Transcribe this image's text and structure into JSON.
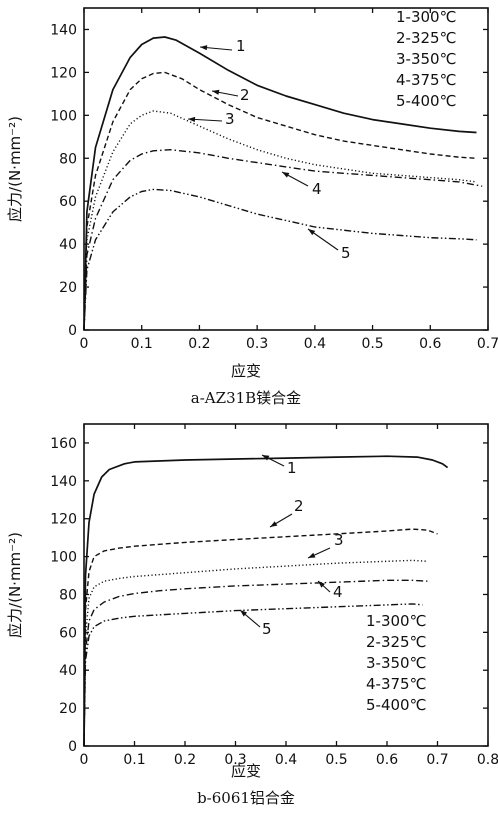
{
  "chart_data": [
    {
      "type": "line",
      "caption": "a-AZ31B镁合金",
      "xlabel": "应变",
      "ylabel": "应力/(N·mm⁻²)",
      "xlim": [
        0,
        0.7
      ],
      "ylim": [
        0,
        150
      ],
      "xticks": [
        "0",
        "0.1",
        "0.2",
        "0.3",
        "0.4",
        "0.5",
        "0.6",
        "0.7"
      ],
      "yticks": [
        "0",
        "20",
        "40",
        "60",
        "80",
        "100",
        "120",
        "140"
      ],
      "legend_position": "top-right",
      "legend": [
        "1-300℃",
        "2-325℃",
        "3-350℃",
        "4-375℃",
        "5-400℃"
      ],
      "series": [
        {
          "name": "1",
          "style": "solid",
          "x": [
            0,
            0.005,
            0.02,
            0.05,
            0.08,
            0.1,
            0.12,
            0.14,
            0.16,
            0.2,
            0.25,
            0.3,
            0.35,
            0.4,
            0.45,
            0.5,
            0.55,
            0.6,
            0.65,
            0.68
          ],
          "y": [
            0,
            55,
            85,
            112,
            127,
            133,
            136,
            136.5,
            135,
            129,
            121,
            114,
            109,
            105,
            101,
            98,
            96,
            94,
            92.5,
            92
          ]
        },
        {
          "name": "2",
          "style": "dashed",
          "x": [
            0,
            0.005,
            0.02,
            0.05,
            0.08,
            0.1,
            0.12,
            0.14,
            0.17,
            0.2,
            0.25,
            0.3,
            0.35,
            0.4,
            0.45,
            0.5,
            0.55,
            0.6,
            0.65,
            0.68
          ],
          "y": [
            0,
            48,
            72,
            97,
            112,
            117,
            119.5,
            120,
            117,
            112,
            105,
            99,
            95,
            91,
            88,
            86,
            84,
            82,
            80.5,
            80
          ]
        },
        {
          "name": "3",
          "style": "dotted",
          "x": [
            0,
            0.005,
            0.02,
            0.05,
            0.08,
            0.1,
            0.12,
            0.15,
            0.2,
            0.25,
            0.3,
            0.35,
            0.4,
            0.45,
            0.5,
            0.55,
            0.6,
            0.65,
            0.68
          ],
          "y": [
            0,
            42,
            62,
            83,
            96,
            100,
            102,
            101,
            95,
            89,
            84,
            80,
            77,
            75,
            73,
            72,
            71,
            70,
            69
          ]
        },
        {
          "name": "4",
          "style": "dash-dot",
          "x": [
            0,
            0.005,
            0.02,
            0.05,
            0.08,
            0.1,
            0.12,
            0.15,
            0.2,
            0.25,
            0.3,
            0.35,
            0.4,
            0.45,
            0.5,
            0.55,
            0.6,
            0.65,
            0.69
          ],
          "y": [
            0,
            35,
            52,
            70,
            79,
            82,
            83.5,
            84,
            82.5,
            80,
            78,
            76,
            74,
            73,
            72,
            71,
            70,
            69,
            67
          ]
        },
        {
          "name": "5",
          "style": "dash-dot-dot",
          "x": [
            0,
            0.005,
            0.02,
            0.05,
            0.08,
            0.1,
            0.12,
            0.15,
            0.2,
            0.25,
            0.3,
            0.35,
            0.4,
            0.45,
            0.5,
            0.55,
            0.6,
            0.65,
            0.68
          ],
          "y": [
            0,
            28,
            42,
            55,
            62,
            64.5,
            65.5,
            65,
            62,
            58,
            54,
            51,
            48,
            46.5,
            45,
            44,
            43,
            42.5,
            42
          ]
        }
      ]
    },
    {
      "type": "line",
      "caption": "b-6061铝合金",
      "xlabel": "应变",
      "ylabel": "应力/(N·mm⁻²)",
      "xlim": [
        0,
        0.8
      ],
      "ylim": [
        0,
        170
      ],
      "xticks": [
        "0",
        "0.1",
        "0.2",
        "0.3",
        "0.4",
        "0.5",
        "0.6",
        "0.7",
        "0.8"
      ],
      "yticks": [
        "0",
        "20",
        "40",
        "60",
        "80",
        "100",
        "120",
        "140",
        "160"
      ],
      "legend_position": "bottom-right",
      "legend": [
        "1-300℃",
        "2-325℃",
        "3-350℃",
        "4-375℃",
        "5-400℃"
      ],
      "series": [
        {
          "name": "1",
          "style": "solid",
          "x": [
            0,
            0.003,
            0.01,
            0.02,
            0.035,
            0.05,
            0.08,
            0.1,
            0.2,
            0.3,
            0.4,
            0.5,
            0.6,
            0.66,
            0.69,
            0.71,
            0.72
          ],
          "y": [
            0,
            90,
            118,
            133,
            142,
            146,
            149,
            150,
            151,
            151.5,
            152,
            152.5,
            153,
            152.5,
            151,
            149,
            147
          ]
        },
        {
          "name": "2",
          "style": "dashed",
          "x": [
            0,
            0.003,
            0.01,
            0.02,
            0.04,
            0.07,
            0.1,
            0.2,
            0.3,
            0.4,
            0.5,
            0.6,
            0.65,
            0.68,
            0.7
          ],
          "y": [
            0,
            72,
            92,
            100,
            103,
            104.5,
            105.5,
            107.5,
            109,
            110.5,
            112,
            113.5,
            114.5,
            114,
            112
          ]
        },
        {
          "name": "3",
          "style": "dotted",
          "x": [
            0,
            0.003,
            0.01,
            0.02,
            0.04,
            0.07,
            0.1,
            0.2,
            0.3,
            0.4,
            0.5,
            0.6,
            0.65,
            0.68
          ],
          "y": [
            0,
            58,
            78,
            84,
            87,
            88.5,
            89.5,
            91.5,
            93.5,
            95,
            96.5,
            97.5,
            98,
            97.5
          ]
        },
        {
          "name": "4",
          "style": "dash-dot",
          "x": [
            0,
            0.003,
            0.01,
            0.02,
            0.04,
            0.07,
            0.1,
            0.15,
            0.2,
            0.3,
            0.4,
            0.5,
            0.6,
            0.65,
            0.68
          ],
          "y": [
            0,
            50,
            66,
            72,
            76,
            79,
            80.5,
            82,
            83,
            84.5,
            85.5,
            86.5,
            87.5,
            87.5,
            87
          ]
        },
        {
          "name": "5",
          "style": "dash-dot-dot",
          "x": [
            0,
            0.003,
            0.01,
            0.02,
            0.04,
            0.07,
            0.1,
            0.2,
            0.3,
            0.4,
            0.5,
            0.6,
            0.65,
            0.67
          ],
          "y": [
            0,
            45,
            58,
            63,
            66,
            67.5,
            68.5,
            70,
            71.5,
            72.5,
            73.5,
            74.5,
            75,
            74.5
          ]
        }
      ]
    }
  ]
}
